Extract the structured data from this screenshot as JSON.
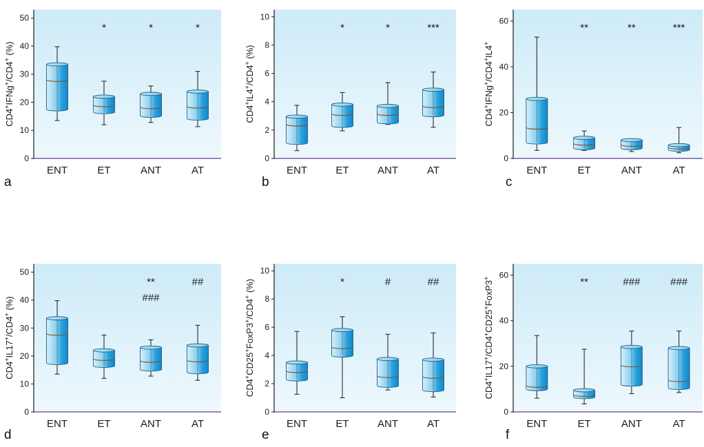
{
  "chart_data": [
    {
      "type": "box",
      "panel": "a",
      "ylabel": "CD4⁺IFNg⁺/CD4⁺ (%)",
      "ylabel_parts": [
        [
          "CD4",
          ""
        ],
        [
          "+",
          "sup"
        ],
        [
          "IFNg",
          ""
        ],
        [
          "+",
          "sup"
        ],
        [
          "/CD4",
          ""
        ],
        [
          "+",
          "sup"
        ],
        [
          " (%)",
          ""
        ]
      ],
      "ylim": [
        0,
        53
      ],
      "yticks": [
        0,
        10,
        20,
        30,
        40,
        50
      ],
      "categories": [
        "ENT",
        "ET",
        "ANT",
        "AT"
      ],
      "boxes": [
        {
          "min": 13.5,
          "q1": 17.5,
          "median": 28,
          "q3": 33.5,
          "max": 39.8
        },
        {
          "min": 12,
          "q1": 16.5,
          "median": 19,
          "q3": 22,
          "max": 27.5
        },
        {
          "min": 12.8,
          "q1": 15.2,
          "median": 18.3,
          "q3": 23,
          "max": 25.8
        },
        {
          "min": 11.3,
          "q1": 14.2,
          "median": 18.5,
          "q3": 23.8,
          "max": 31
        }
      ],
      "annotations": [
        [
          "",
          ""
        ],
        [
          "*",
          ""
        ],
        [
          "*",
          ""
        ],
        [
          "*",
          ""
        ]
      ]
    },
    {
      "type": "box",
      "panel": "b",
      "ylabel": "CD4⁺IL4⁺/CD4⁺ (%)",
      "ylabel_parts": [
        [
          "CD4",
          ""
        ],
        [
          "+",
          "sup"
        ],
        [
          "IL4",
          ""
        ],
        [
          "+",
          "sup"
        ],
        [
          "/CD4",
          ""
        ],
        [
          "+",
          "sup"
        ],
        [
          " (%)",
          ""
        ]
      ],
      "ylim": [
        0,
        10.5
      ],
      "yticks": [
        0,
        2,
        4,
        6,
        8,
        10
      ],
      "categories": [
        "ENT",
        "ET",
        "ANT",
        "AT"
      ],
      "boxes": [
        {
          "min": 0.55,
          "q1": 1.1,
          "median": 2.4,
          "q3": 2.95,
          "max": 3.75
        },
        {
          "min": 1.95,
          "q1": 2.3,
          "median": 3.15,
          "q3": 3.8,
          "max": 4.65
        },
        {
          "min": 2.4,
          "q1": 2.55,
          "median": 3.15,
          "q3": 3.7,
          "max": 5.35
        },
        {
          "min": 2.2,
          "q1": 3.05,
          "median": 3.7,
          "q3": 4.85,
          "max": 6.1
        }
      ],
      "annotations": [
        [
          "",
          ""
        ],
        [
          "*",
          ""
        ],
        [
          "*",
          ""
        ],
        [
          "***",
          ""
        ]
      ]
    },
    {
      "type": "box",
      "panel": "c",
      "ylabel": "CD4⁺IFNg⁺/CD4⁺IL4⁺",
      "ylabel_parts": [
        [
          "CD4",
          ""
        ],
        [
          "+",
          "sup"
        ],
        [
          "IFNg",
          ""
        ],
        [
          "+",
          "sup"
        ],
        [
          "/CD4",
          ""
        ],
        [
          "+",
          "sup"
        ],
        [
          "IL4",
          ""
        ],
        [
          "+",
          "sup"
        ]
      ],
      "ylim": [
        0,
        65
      ],
      "yticks": [
        0,
        20,
        40,
        60
      ],
      "categories": [
        "ENT",
        "ET",
        "ANT",
        "AT"
      ],
      "boxes": [
        {
          "min": 3.5,
          "q1": 7,
          "median": 13.5,
          "q3": 26,
          "max": 53
        },
        {
          "min": 3.5,
          "q1": 4.5,
          "median": 6.5,
          "q3": 9,
          "max": 12
        },
        {
          "min": 3,
          "q1": 4.5,
          "median": 6,
          "q3": 8,
          "max": 8.5
        },
        {
          "min": 2.5,
          "q1": 3.8,
          "median": 4.8,
          "q3": 5.8,
          "max": 13.5
        }
      ],
      "annotations": [
        [
          "",
          ""
        ],
        [
          "**",
          ""
        ],
        [
          "**",
          ""
        ],
        [
          "***",
          ""
        ]
      ]
    },
    {
      "type": "box",
      "panel": "d",
      "ylabel": "CD4⁺IL17⁺/CD4⁺ (%)",
      "ylabel_parts": [
        [
          "CD4",
          ""
        ],
        [
          "+",
          "sup"
        ],
        [
          "IL17",
          ""
        ],
        [
          "+",
          "sup"
        ],
        [
          "/CD4",
          ""
        ],
        [
          "+",
          "sup"
        ],
        [
          " (%)",
          ""
        ]
      ],
      "ylim": [
        0,
        53
      ],
      "yticks": [
        0,
        10,
        20,
        30,
        40,
        50
      ],
      "categories": [
        "ENT",
        "ET",
        "ANT",
        "AT"
      ],
      "boxes": [
        {
          "min": 13.5,
          "q1": 17.5,
          "median": 28,
          "q3": 33.5,
          "max": 39.8
        },
        {
          "min": 12,
          "q1": 16.5,
          "median": 19,
          "q3": 22,
          "max": 27.5
        },
        {
          "min": 12.8,
          "q1": 15.2,
          "median": 18.3,
          "q3": 23,
          "max": 25.8
        },
        {
          "min": 11.3,
          "q1": 14.2,
          "median": 18.5,
          "q3": 23.8,
          "max": 31
        }
      ],
      "annotations": [
        [
          "",
          ""
        ],
        [
          "",
          ""
        ],
        [
          "**",
          "###"
        ],
        [
          "##",
          ""
        ]
      ]
    },
    {
      "type": "box",
      "panel": "e",
      "ylabel": "CD4⁺CD25⁺FoxP3⁺/CD4⁺ (%)",
      "ylabel_parts": [
        [
          "CD4",
          ""
        ],
        [
          "+",
          "sup"
        ],
        [
          "CD25",
          ""
        ],
        [
          "+",
          "sup"
        ],
        [
          "FoxP3",
          ""
        ],
        [
          "+",
          "sup"
        ],
        [
          "/CD4",
          ""
        ],
        [
          "+",
          "sup"
        ],
        [
          " (%)",
          ""
        ]
      ],
      "ylim": [
        0,
        10.5
      ],
      "yticks": [
        0,
        2,
        4,
        6,
        8,
        10
      ],
      "categories": [
        "ENT",
        "ET",
        "ANT",
        "AT"
      ],
      "boxes": [
        {
          "min": 1.25,
          "q1": 2.3,
          "median": 2.9,
          "q3": 3.5,
          "max": 5.7
        },
        {
          "min": 1.0,
          "q1": 4.0,
          "median": 4.6,
          "q3": 5.8,
          "max": 6.75
        },
        {
          "min": 1.55,
          "q1": 1.85,
          "median": 2.55,
          "q3": 3.75,
          "max": 5.5
        },
        {
          "min": 1.05,
          "q1": 1.55,
          "median": 2.5,
          "q3": 3.7,
          "max": 5.6
        }
      ],
      "annotations": [
        [
          "",
          ""
        ],
        [
          "*",
          ""
        ],
        [
          "#",
          ""
        ],
        [
          "##",
          ""
        ]
      ]
    },
    {
      "type": "box",
      "panel": "f",
      "ylabel": "CD4⁺IL17⁺/CD4⁺CD25⁺FoxP3⁺",
      "ylabel_parts": [
        [
          "CD4",
          ""
        ],
        [
          "+",
          "sup"
        ],
        [
          "IL17",
          ""
        ],
        [
          "+",
          "sup"
        ],
        [
          "/CD4",
          ""
        ],
        [
          "+",
          "sup"
        ],
        [
          "CD25",
          ""
        ],
        [
          "+",
          "sup"
        ],
        [
          "FoxP3",
          ""
        ],
        [
          "+",
          "sup"
        ]
      ],
      "ylim": [
        0,
        65
      ],
      "yticks": [
        0,
        20,
        40,
        60
      ],
      "categories": [
        "ENT",
        "ET",
        "ANT",
        "AT"
      ],
      "boxes": [
        {
          "min": 6,
          "q1": 10,
          "median": 11.5,
          "q3": 20,
          "max": 33.5
        },
        {
          "min": 3.5,
          "q1": 6.5,
          "median": 7.5,
          "q3": 9.5,
          "max": 27.5
        },
        {
          "min": 8,
          "q1": 12,
          "median": 20.5,
          "q3": 28.5,
          "max": 35.5
        },
        {
          "min": 8.5,
          "q1": 10.5,
          "median": 14,
          "q3": 28,
          "max": 35.5
        }
      ],
      "annotations": [
        [
          "",
          ""
        ],
        [
          "**",
          ""
        ],
        [
          "###",
          ""
        ],
        [
          "###",
          ""
        ]
      ]
    }
  ]
}
